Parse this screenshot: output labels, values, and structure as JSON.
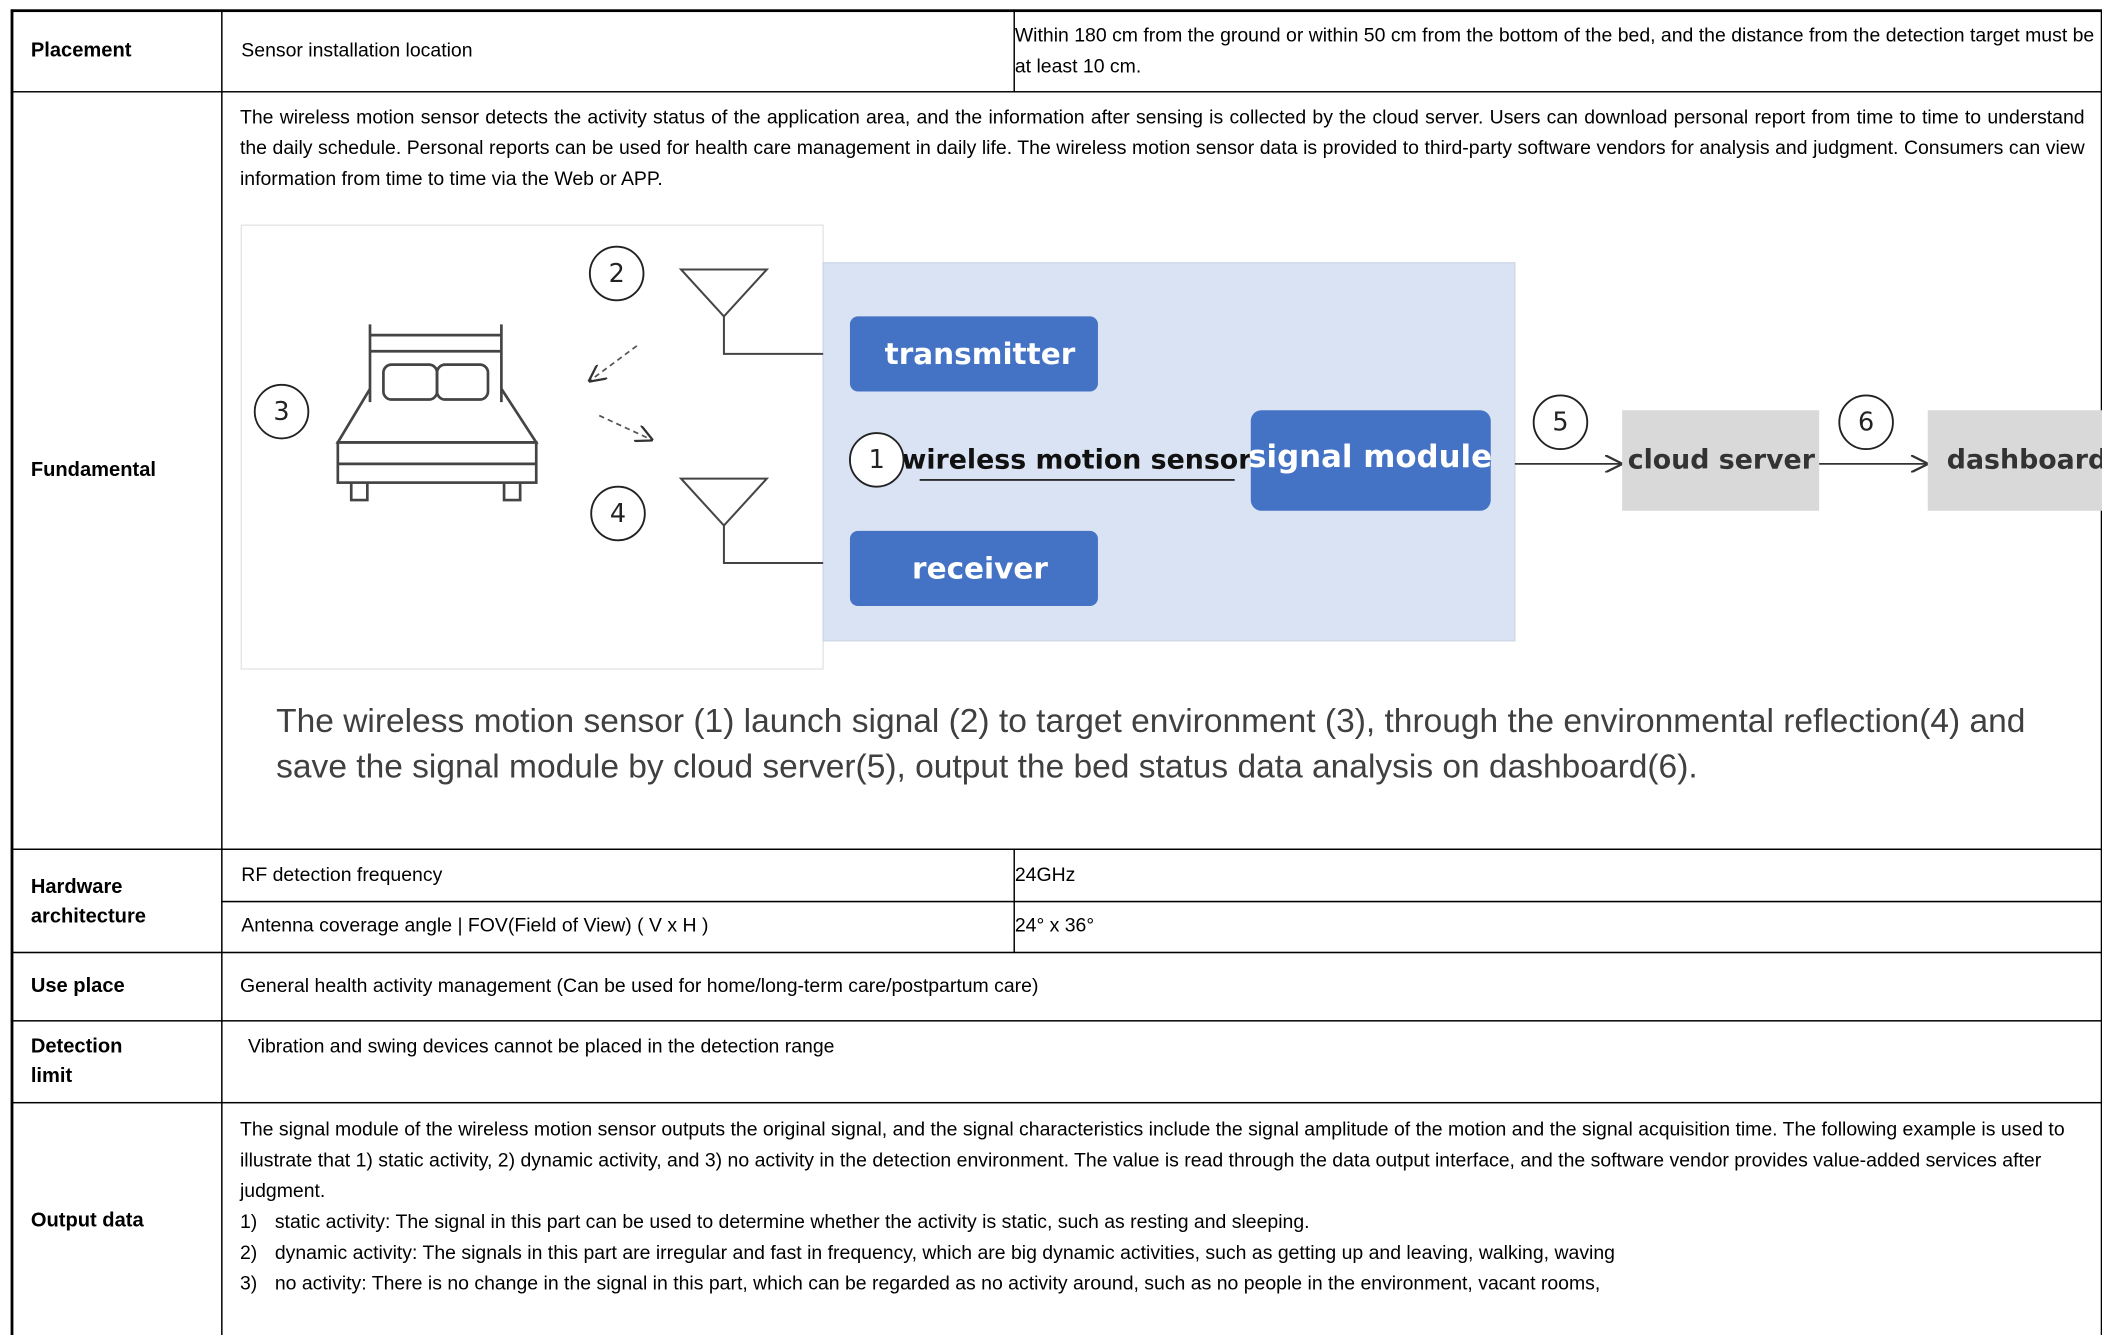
{
  "table": {
    "rows": [
      {
        "label": "Placement",
        "item": "Sensor installation location",
        "value": "Within 180 cm from the ground or within 50 cm from the bottom of the bed, and the distance from the detection target must be at least 10 cm."
      },
      {
        "label": "Fundamental",
        "text": "The wireless motion sensor detects the activity status of the application area, and the information after sensing is collected by the cloud server. Users can download personal report from time to time to understand the daily schedule. Personal reports can be used for health care management in daily life. The wireless motion sensor data is provided to third-party software vendors for analysis and judgment. Consumers can view information from time to time via the Web or APP.",
        "diagram": {
          "transmitter": "transmitter",
          "receiver": "receiver",
          "sensor": "wireless motion sensor",
          "signal_module": "signal module",
          "cloud_server": "cloud server",
          "dashboard": "dashboard",
          "markers": [
            "1",
            "2",
            "3",
            "4",
            "5",
            "6"
          ]
        },
        "caption": "The wireless motion sensor (1) launch signal (2) to target environment (3), through the environmental reflection(4) and save the signal module by cloud server(5), output the bed status data analysis on dashboard(6)."
      },
      {
        "label": "Hardware architecture",
        "items": [
          {
            "item": "RF detection frequency",
            "value": "24GHz"
          },
          {
            "item": "Antenna coverage angle | FOV(Field of View) ( V x H )",
            "value": "24° x 36°"
          }
        ]
      },
      {
        "label": "Use place",
        "text": "General health activity management (Can be used for home/long-term care/postpartum care)"
      },
      {
        "label": "Detection limit",
        "text": "Vibration and swing devices cannot be placed in the detection range"
      },
      {
        "label": "Output data",
        "text": "The signal module of the wireless motion sensor outputs the original signal, and the signal characteristics include the signal amplitude of the motion and the signal acquisition time. The following example is used to illustrate that 1) static activity, 2) dynamic activity, and 3) no activity in the detection environment. The value is read through the data output interface, and the software vendor provides value-added services after judgment.",
        "list": [
          {
            "marker": "1)",
            "text": "static activity: The signal in this part can be used to determine whether the activity is static, such as resting and sleeping."
          },
          {
            "marker": "2)",
            "text": "dynamic activity: The signals in this part are irregular and fast in frequency, which are big dynamic activities, such as getting up and leaving, walking, waving"
          },
          {
            "marker": "3)",
            "text": "no activity: There is no change in the signal in this part, which can be regarded as no activity around, such as no people in the environment, vacant rooms,"
          }
        ]
      }
    ]
  }
}
